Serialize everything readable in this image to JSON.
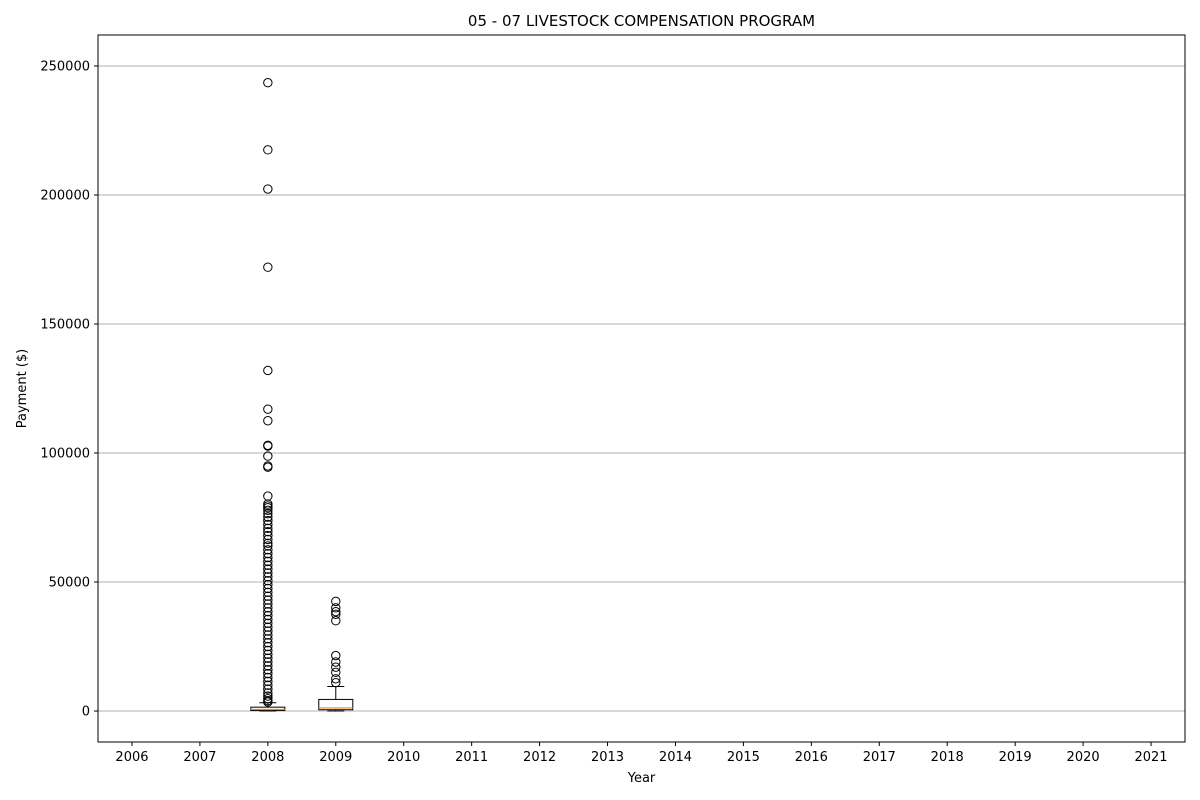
{
  "chart_data": {
    "type": "box",
    "title": "05 - 07 LIVESTOCK COMPENSATION PROGRAM",
    "xlabel": "Year",
    "ylabel": "Payment ($)",
    "categories": [
      "2006",
      "2007",
      "2008",
      "2009",
      "2010",
      "2011",
      "2012",
      "2013",
      "2014",
      "2015",
      "2016",
      "2017",
      "2018",
      "2019",
      "2020",
      "2021"
    ],
    "ylim": [
      -12000,
      262000
    ],
    "yticks": [
      0,
      50000,
      100000,
      150000,
      200000,
      250000
    ],
    "grid": "y",
    "colors": {
      "box_edge": "#000000",
      "median": "#ff7f0e",
      "grid": "#b0b0b0"
    },
    "boxes": [
      {
        "category": "2008",
        "whisker_low": 0,
        "q1": 200,
        "median": 600,
        "q3": 1500,
        "whisker_high": 3200,
        "outliers": [
          243500,
          217500,
          202300,
          172000,
          132000,
          117000,
          112500,
          103000,
          102700,
          98800,
          95000,
          94500,
          83300,
          80200,
          79500,
          78800,
          77800,
          76500,
          75200,
          73800,
          72300,
          70800,
          69500,
          68000,
          66500,
          65000,
          64000,
          62500,
          61000,
          59500,
          58000,
          56500,
          55000,
          53500,
          52000,
          50500,
          49000,
          47500,
          46000,
          44500,
          43000,
          41500,
          40000,
          38500,
          37000,
          35500,
          34000,
          32500,
          31000,
          29500,
          28000,
          26500,
          25000,
          23500,
          22000,
          20500,
          19000,
          17500,
          16000,
          14500,
          13000,
          11500,
          10000,
          8500,
          7000,
          5800,
          4800,
          4000,
          3500
        ]
      },
      {
        "category": "2009",
        "whisker_low": 0,
        "q1": 500,
        "median": 1200,
        "q3": 4500,
        "whisker_high": 9500,
        "outliers": [
          42500,
          40000,
          38500,
          37500,
          35000,
          21500,
          19000,
          17000,
          15000,
          12500,
          11000
        ]
      }
    ]
  }
}
